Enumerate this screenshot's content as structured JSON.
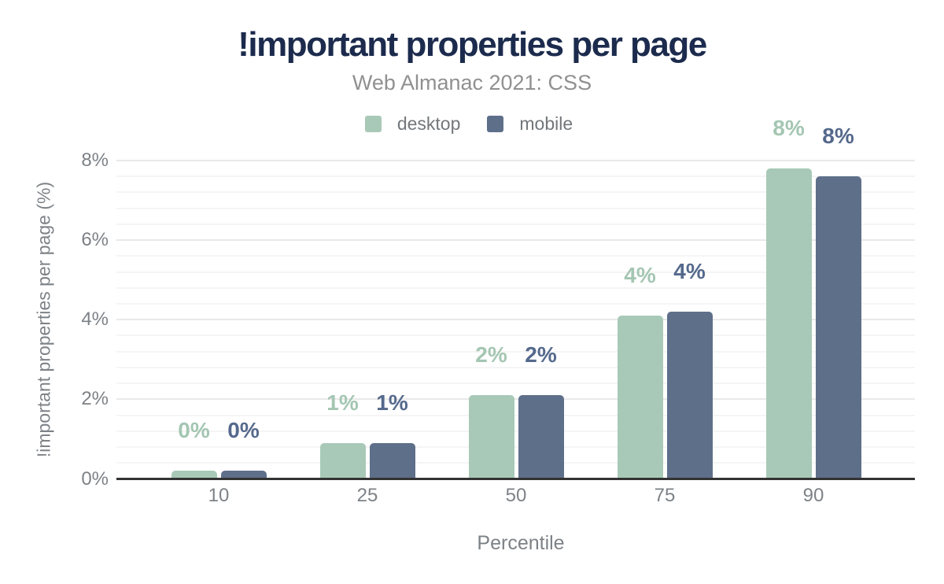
{
  "header": {
    "title": "!important properties per page",
    "subtitle": "Web Almanac 2021: CSS"
  },
  "legend": {
    "items": [
      {
        "label": "desktop",
        "color": "#a8c9b7"
      },
      {
        "label": "mobile",
        "color": "#5e6f8a"
      }
    ]
  },
  "colors": {
    "title_text": "#1c2b4d",
    "subtitle_text": "#909090",
    "axis_text": "#7d8287",
    "axis_line": "#333333",
    "gridline_minor": "#f5f5f5",
    "gridline_major": "#e9e9e9",
    "desktop": "#a8c9b7",
    "mobile": "#5e6f8a",
    "desktop_label": "#a4c6b2",
    "mobile_label": "#55698c"
  },
  "chart_data": {
    "type": "bar",
    "title": "!important properties per page",
    "subtitle": "Web Almanac 2021: CSS",
    "categories": [
      "10",
      "25",
      "50",
      "75",
      "90"
    ],
    "series": [
      {
        "name": "desktop",
        "color": "#a8c9b7",
        "label_color": "#a4c6b2",
        "values": [
          0.2,
          0.9,
          2.1,
          4.1,
          7.8
        ],
        "labels": [
          "0%",
          "1%",
          "2%",
          "4%",
          "8%"
        ]
      },
      {
        "name": "mobile",
        "color": "#5e6f8a",
        "label_color": "#55698c",
        "values": [
          0.2,
          0.9,
          2.1,
          4.2,
          7.6
        ],
        "labels": [
          "0%",
          "1%",
          "2%",
          "4%",
          "8%"
        ]
      }
    ],
    "xlabel": "Percentile",
    "ylabel": "!important properties per page (%)",
    "ylim": [
      0,
      8.4
    ],
    "yticks": [
      {
        "v": 0,
        "label": "0%"
      },
      {
        "v": 2,
        "label": "2%"
      },
      {
        "v": 4,
        "label": "4%"
      },
      {
        "v": 6,
        "label": "6%"
      },
      {
        "v": 8,
        "label": "8%"
      }
    ],
    "grid": {
      "minor_step": 0.4,
      "major_step": 2,
      "max": 8
    },
    "legend_position": "top"
  }
}
